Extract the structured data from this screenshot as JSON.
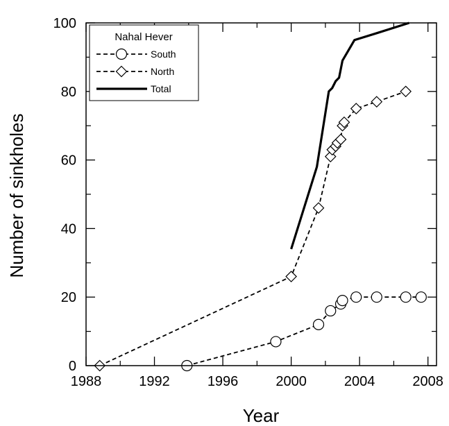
{
  "chart_data": {
    "type": "line",
    "xlabel": "Year",
    "ylabel": "Number of sinkholes",
    "xlim": [
      1988,
      2008.5
    ],
    "ylim": [
      0,
      100
    ],
    "x_ticks": [
      1988,
      1992,
      1996,
      2000,
      2004,
      2008
    ],
    "y_ticks": [
      0,
      20,
      40,
      60,
      80,
      100
    ],
    "grid": false,
    "legend": {
      "title": "Nahal Hever",
      "position": "top-left",
      "entries": [
        "South",
        "North",
        "Total"
      ]
    },
    "series": [
      {
        "name": "South",
        "style": "dashed",
        "marker": "circle",
        "color": "#000000",
        "points": [
          [
            1993.9,
            0
          ],
          [
            1999.1,
            7
          ],
          [
            2001.6,
            12
          ],
          [
            2002.3,
            16
          ],
          [
            2002.9,
            18
          ],
          [
            2003.0,
            19
          ],
          [
            2003.8,
            20
          ],
          [
            2005.0,
            20
          ],
          [
            2006.7,
            20
          ],
          [
            2007.6,
            20
          ]
        ]
      },
      {
        "name": "North",
        "style": "dashed",
        "marker": "diamond",
        "color": "#000000",
        "points": [
          [
            1988.8,
            0
          ],
          [
            2000.0,
            26
          ],
          [
            2001.6,
            46
          ],
          [
            2002.3,
            61
          ],
          [
            2002.4,
            63
          ],
          [
            2002.6,
            64
          ],
          [
            2002.7,
            65
          ],
          [
            2002.9,
            66
          ],
          [
            2003.0,
            70
          ],
          [
            2003.1,
            71
          ],
          [
            2003.8,
            75
          ],
          [
            2005.0,
            77
          ],
          [
            2006.7,
            80
          ]
        ]
      },
      {
        "name": "Total",
        "style": "solid",
        "marker": "none",
        "color": "#000000",
        "points": [
          [
            2000.0,
            34
          ],
          [
            2001.5,
            58
          ],
          [
            2002.2,
            80
          ],
          [
            2002.4,
            81
          ],
          [
            2002.6,
            83
          ],
          [
            2002.8,
            84
          ],
          [
            2003.0,
            89
          ],
          [
            2003.7,
            95
          ],
          [
            2005.0,
            97
          ],
          [
            2006.9,
            100
          ]
        ]
      }
    ]
  }
}
